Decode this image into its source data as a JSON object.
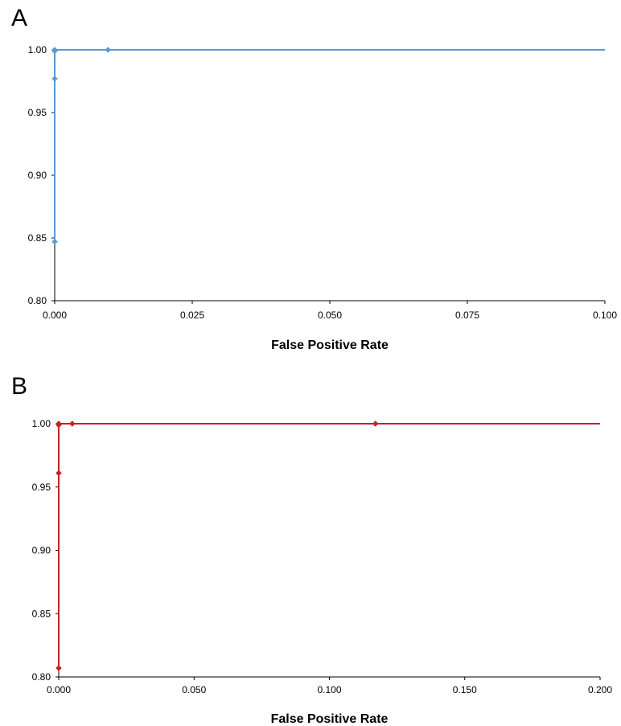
{
  "chart_data": [
    {
      "panel": "A",
      "type": "line",
      "xlabel": "False Positive Rate",
      "ylabel": "",
      "xlim": [
        0,
        0.1
      ],
      "ylim": [
        0.8,
        1.0
      ],
      "xticks": [
        "0.000",
        "0.025",
        "0.050",
        "0.075",
        "0.100"
      ],
      "yticks": [
        "0.80",
        "0.85",
        "0.90",
        "0.95",
        "1.00"
      ],
      "grid": false,
      "color": "#5b9bd5",
      "marker": "diamond",
      "series": [
        {
          "x": [
            0,
            0,
            0,
            0,
            0.0097,
            0.1
          ],
          "y": [
            0.847,
            0.977,
            0.999,
            1.0,
            1.0,
            1.0
          ]
        }
      ]
    },
    {
      "panel": "B",
      "type": "line",
      "xlabel": "False Positive Rate",
      "ylabel": "",
      "xlim": [
        0,
        0.2
      ],
      "ylim": [
        0.8,
        1.0
      ],
      "xticks": [
        "0.000",
        "0.050",
        "0.100",
        "0.150",
        "0.200"
      ],
      "yticks": [
        "0.80",
        "0.85",
        "0.90",
        "0.95",
        "1.00"
      ],
      "grid": false,
      "color": "#cc1f1f",
      "marker": "diamond",
      "series": [
        {
          "x": [
            0,
            0,
            0,
            0,
            0.005,
            0.117,
            0.2
          ],
          "y": [
            0.807,
            0.961,
            0.999,
            1.0,
            1.0,
            1.0,
            1.0
          ]
        }
      ]
    }
  ]
}
